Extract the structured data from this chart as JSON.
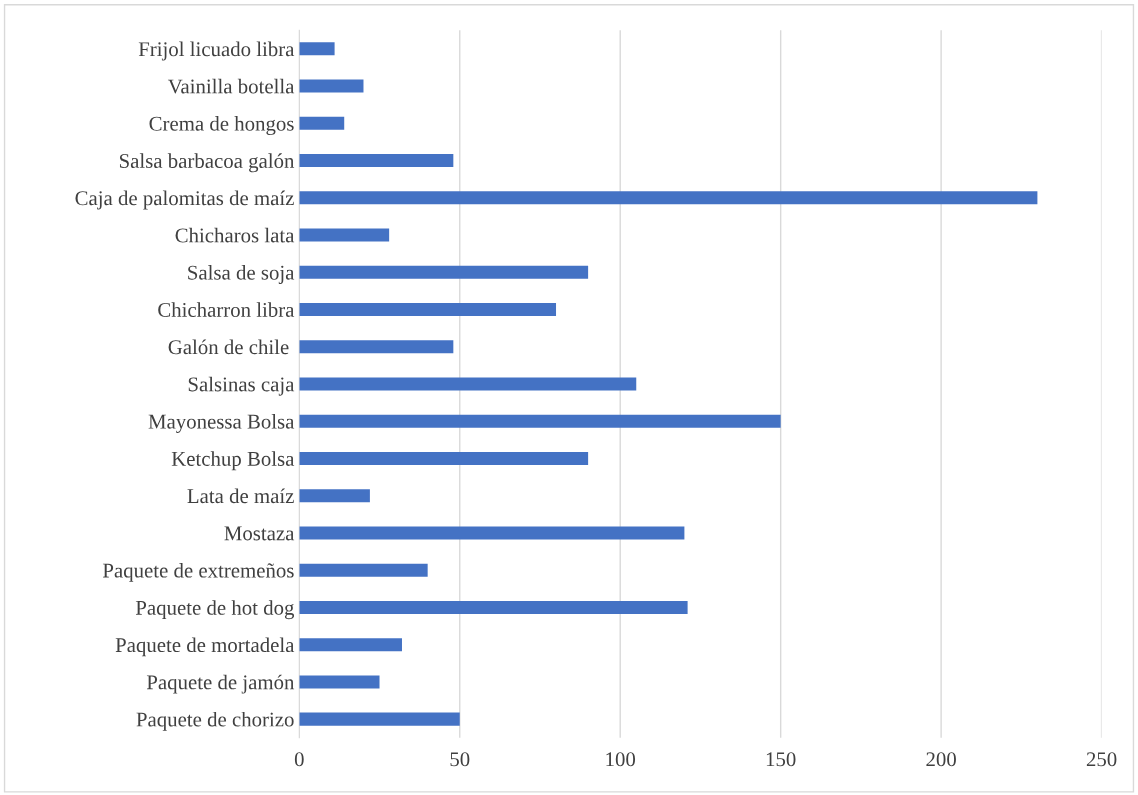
{
  "chart_data": {
    "type": "bar",
    "orientation": "horizontal",
    "categories": [
      "Frijol licuado libra",
      "Vainilla botella",
      "Crema de hongos",
      "Salsa barbacoa galón",
      "Caja de palomitas de maíz",
      "Chicharos lata",
      "Salsa de soja",
      "Chicharron libra",
      "Galón de chile ",
      "Salsinas caja",
      "Mayonessa Bolsa",
      "Ketchup Bolsa",
      "Lata de maíz",
      "Mostaza",
      "Paquete de extremeños",
      "Paquete de hot dog",
      "Paquete de mortadela",
      "Paquete de jamón",
      "Paquete de chorizo"
    ],
    "values": [
      11,
      20,
      14,
      48,
      230,
      28,
      90,
      80,
      48,
      105,
      150,
      90,
      22,
      120,
      40,
      121,
      32,
      25,
      50
    ],
    "color": "#4472c4",
    "xlim": [
      0,
      250
    ],
    "xticks": [
      0,
      50,
      100,
      150,
      200,
      250
    ],
    "grid": "x"
  }
}
